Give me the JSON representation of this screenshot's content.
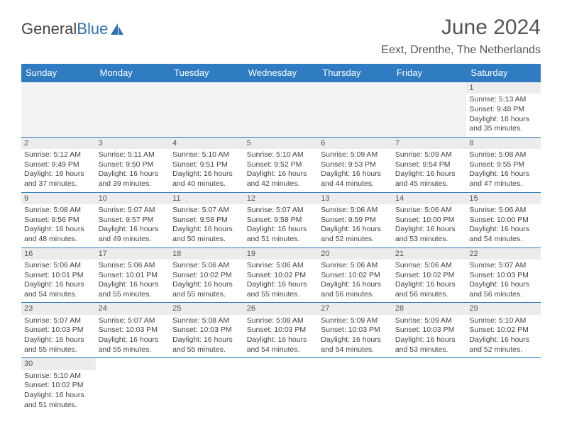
{
  "brand": {
    "part1": "General",
    "part2": "Blue"
  },
  "header": {
    "title": "June 2024",
    "location": "Eext, Drenthe, The Netherlands"
  },
  "colors": {
    "header_bar": "#2f7cc3",
    "logo_blue": "#2f6fb0",
    "text": "#555555",
    "cell_text": "#444444",
    "daynum_bg": "#ececec",
    "blank_bg": "#f2f2f2"
  },
  "day_names": [
    "Sunday",
    "Monday",
    "Tuesday",
    "Wednesday",
    "Thursday",
    "Friday",
    "Saturday"
  ],
  "weeks": [
    [
      {
        "blank": true
      },
      {
        "blank": true
      },
      {
        "blank": true
      },
      {
        "blank": true
      },
      {
        "blank": true
      },
      {
        "blank": true
      },
      {
        "day": "1",
        "sunrise": "Sunrise: 5:13 AM",
        "sunset": "Sunset: 9:48 PM",
        "dl1": "Daylight: 16 hours",
        "dl2": "and 35 minutes."
      }
    ],
    [
      {
        "day": "2",
        "sunrise": "Sunrise: 5:12 AM",
        "sunset": "Sunset: 9:49 PM",
        "dl1": "Daylight: 16 hours",
        "dl2": "and 37 minutes."
      },
      {
        "day": "3",
        "sunrise": "Sunrise: 5:11 AM",
        "sunset": "Sunset: 9:50 PM",
        "dl1": "Daylight: 16 hours",
        "dl2": "and 39 minutes."
      },
      {
        "day": "4",
        "sunrise": "Sunrise: 5:10 AM",
        "sunset": "Sunset: 9:51 PM",
        "dl1": "Daylight: 16 hours",
        "dl2": "and 40 minutes."
      },
      {
        "day": "5",
        "sunrise": "Sunrise: 5:10 AM",
        "sunset": "Sunset: 9:52 PM",
        "dl1": "Daylight: 16 hours",
        "dl2": "and 42 minutes."
      },
      {
        "day": "6",
        "sunrise": "Sunrise: 5:09 AM",
        "sunset": "Sunset: 9:53 PM",
        "dl1": "Daylight: 16 hours",
        "dl2": "and 44 minutes."
      },
      {
        "day": "7",
        "sunrise": "Sunrise: 5:09 AM",
        "sunset": "Sunset: 9:54 PM",
        "dl1": "Daylight: 16 hours",
        "dl2": "and 45 minutes."
      },
      {
        "day": "8",
        "sunrise": "Sunrise: 5:08 AM",
        "sunset": "Sunset: 9:55 PM",
        "dl1": "Daylight: 16 hours",
        "dl2": "and 47 minutes."
      }
    ],
    [
      {
        "day": "9",
        "sunrise": "Sunrise: 5:08 AM",
        "sunset": "Sunset: 9:56 PM",
        "dl1": "Daylight: 16 hours",
        "dl2": "and 48 minutes."
      },
      {
        "day": "10",
        "sunrise": "Sunrise: 5:07 AM",
        "sunset": "Sunset: 9:57 PM",
        "dl1": "Daylight: 16 hours",
        "dl2": "and 49 minutes."
      },
      {
        "day": "11",
        "sunrise": "Sunrise: 5:07 AM",
        "sunset": "Sunset: 9:58 PM",
        "dl1": "Daylight: 16 hours",
        "dl2": "and 50 minutes."
      },
      {
        "day": "12",
        "sunrise": "Sunrise: 5:07 AM",
        "sunset": "Sunset: 9:58 PM",
        "dl1": "Daylight: 16 hours",
        "dl2": "and 51 minutes."
      },
      {
        "day": "13",
        "sunrise": "Sunrise: 5:06 AM",
        "sunset": "Sunset: 9:59 PM",
        "dl1": "Daylight: 16 hours",
        "dl2": "and 52 minutes."
      },
      {
        "day": "14",
        "sunrise": "Sunrise: 5:06 AM",
        "sunset": "Sunset: 10:00 PM",
        "dl1": "Daylight: 16 hours",
        "dl2": "and 53 minutes."
      },
      {
        "day": "15",
        "sunrise": "Sunrise: 5:06 AM",
        "sunset": "Sunset: 10:00 PM",
        "dl1": "Daylight: 16 hours",
        "dl2": "and 54 minutes."
      }
    ],
    [
      {
        "day": "16",
        "sunrise": "Sunrise: 5:06 AM",
        "sunset": "Sunset: 10:01 PM",
        "dl1": "Daylight: 16 hours",
        "dl2": "and 54 minutes."
      },
      {
        "day": "17",
        "sunrise": "Sunrise: 5:06 AM",
        "sunset": "Sunset: 10:01 PM",
        "dl1": "Daylight: 16 hours",
        "dl2": "and 55 minutes."
      },
      {
        "day": "18",
        "sunrise": "Sunrise: 5:06 AM",
        "sunset": "Sunset: 10:02 PM",
        "dl1": "Daylight: 16 hours",
        "dl2": "and 55 minutes."
      },
      {
        "day": "19",
        "sunrise": "Sunrise: 5:06 AM",
        "sunset": "Sunset: 10:02 PM",
        "dl1": "Daylight: 16 hours",
        "dl2": "and 55 minutes."
      },
      {
        "day": "20",
        "sunrise": "Sunrise: 5:06 AM",
        "sunset": "Sunset: 10:02 PM",
        "dl1": "Daylight: 16 hours",
        "dl2": "and 56 minutes."
      },
      {
        "day": "21",
        "sunrise": "Sunrise: 5:06 AM",
        "sunset": "Sunset: 10:02 PM",
        "dl1": "Daylight: 16 hours",
        "dl2": "and 56 minutes."
      },
      {
        "day": "22",
        "sunrise": "Sunrise: 5:07 AM",
        "sunset": "Sunset: 10:03 PM",
        "dl1": "Daylight: 16 hours",
        "dl2": "and 56 minutes."
      }
    ],
    [
      {
        "day": "23",
        "sunrise": "Sunrise: 5:07 AM",
        "sunset": "Sunset: 10:03 PM",
        "dl1": "Daylight: 16 hours",
        "dl2": "and 55 minutes."
      },
      {
        "day": "24",
        "sunrise": "Sunrise: 5:07 AM",
        "sunset": "Sunset: 10:03 PM",
        "dl1": "Daylight: 16 hours",
        "dl2": "and 55 minutes."
      },
      {
        "day": "25",
        "sunrise": "Sunrise: 5:08 AM",
        "sunset": "Sunset: 10:03 PM",
        "dl1": "Daylight: 16 hours",
        "dl2": "and 55 minutes."
      },
      {
        "day": "26",
        "sunrise": "Sunrise: 5:08 AM",
        "sunset": "Sunset: 10:03 PM",
        "dl1": "Daylight: 16 hours",
        "dl2": "and 54 minutes."
      },
      {
        "day": "27",
        "sunrise": "Sunrise: 5:09 AM",
        "sunset": "Sunset: 10:03 PM",
        "dl1": "Daylight: 16 hours",
        "dl2": "and 54 minutes."
      },
      {
        "day": "28",
        "sunrise": "Sunrise: 5:09 AM",
        "sunset": "Sunset: 10:03 PM",
        "dl1": "Daylight: 16 hours",
        "dl2": "and 53 minutes."
      },
      {
        "day": "29",
        "sunrise": "Sunrise: 5:10 AM",
        "sunset": "Sunset: 10:02 PM",
        "dl1": "Daylight: 16 hours",
        "dl2": "and 52 minutes."
      }
    ],
    [
      {
        "day": "30",
        "sunrise": "Sunrise: 5:10 AM",
        "sunset": "Sunset: 10:02 PM",
        "dl1": "Daylight: 16 hours",
        "dl2": "and 51 minutes."
      },
      {
        "blank": true,
        "noshade": true
      },
      {
        "blank": true,
        "noshade": true
      },
      {
        "blank": true,
        "noshade": true
      },
      {
        "blank": true,
        "noshade": true
      },
      {
        "blank": true,
        "noshade": true
      },
      {
        "blank": true,
        "noshade": true
      }
    ]
  ]
}
